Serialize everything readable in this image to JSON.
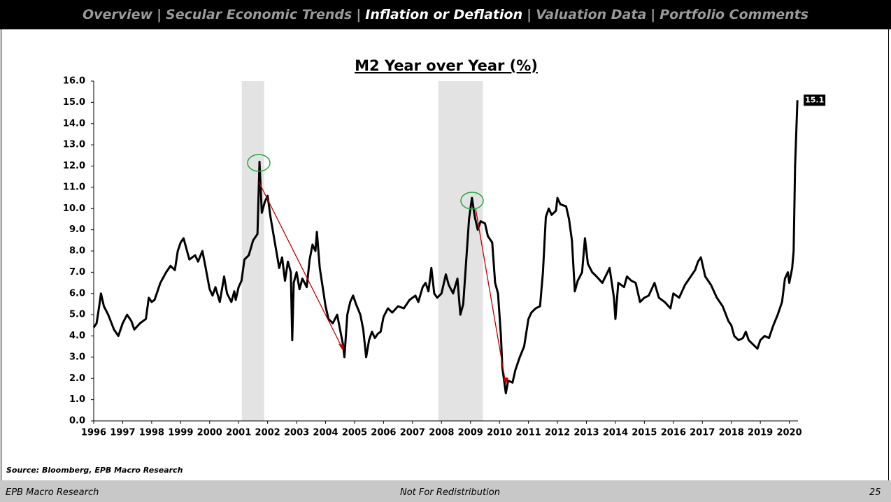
{
  "nav": {
    "items": [
      "Overview",
      "Secular Economic Trends",
      "Inflation or Deflation",
      "Valuation Data",
      "Portfolio Comments"
    ],
    "current": 2,
    "separator": "|"
  },
  "chart_data": {
    "type": "line",
    "title": "M2 Year over Year (%)",
    "xlim": [
      1996,
      2020.3
    ],
    "xticks": [
      1996,
      1997,
      1998,
      1999,
      2000,
      2001,
      2002,
      2003,
      2004,
      2005,
      2006,
      2007,
      2008,
      2009,
      2010,
      2011,
      2012,
      2013,
      2014,
      2015,
      2016,
      2017,
      2018,
      2019,
      2020
    ],
    "ylim": [
      0,
      16
    ],
    "yticks": [
      {
        "value": 0,
        "label": "0.0"
      },
      {
        "value": 1,
        "label": "1.0"
      },
      {
        "value": 2,
        "label": "2.0"
      },
      {
        "value": 3,
        "label": "3.0"
      },
      {
        "value": 4,
        "label": "4.0"
      },
      {
        "value": 5,
        "label": "5.0"
      },
      {
        "value": 6,
        "label": "6.0"
      },
      {
        "value": 7,
        "label": "7.0"
      },
      {
        "value": 8,
        "label": "8.0"
      },
      {
        "value": 9,
        "label": "9.0"
      },
      {
        "value": 10,
        "label": "10.0"
      },
      {
        "value": 11,
        "label": "11.0"
      },
      {
        "value": 12,
        "label": "12.0"
      },
      {
        "value": 13,
        "label": "13.0"
      },
      {
        "value": 14,
        "label": "14.0"
      },
      {
        "value": 15,
        "label": "15.0"
      },
      {
        "value": 16,
        "label": "16.0"
      }
    ],
    "recessions": [
      [
        2001.11,
        2001.88
      ],
      [
        2007.89,
        2009.43
      ]
    ],
    "recession_color": "#e3e3e3",
    "x": [
      1996.0,
      1996.1,
      1996.2,
      1996.25,
      1996.35,
      1996.5,
      1996.7,
      1996.85,
      1997.0,
      1997.15,
      1997.3,
      1997.4,
      1997.6,
      1997.8,
      1997.9,
      1998.0,
      1998.1,
      1998.3,
      1998.5,
      1998.65,
      1998.8,
      1998.9,
      1999.0,
      1999.1,
      1999.2,
      1999.3,
      1999.5,
      1999.6,
      1999.75,
      1999.85,
      2000.0,
      2000.1,
      2000.2,
      2000.35,
      2000.5,
      2000.6,
      2000.75,
      2000.85,
      2000.9,
      2001.0,
      2001.1,
      2001.2,
      2001.35,
      2001.5,
      2001.65,
      2001.72,
      2001.8,
      2001.9,
      2002.0,
      2002.1,
      2002.25,
      2002.4,
      2002.5,
      2002.6,
      2002.7,
      2002.8,
      2002.85,
      2002.9,
      2003.0,
      2003.1,
      2003.2,
      2003.35,
      2003.45,
      2003.55,
      2003.65,
      2003.7,
      2003.8,
      2003.9,
      2004.0,
      2004.1,
      2004.25,
      2004.4,
      2004.5,
      2004.6,
      2004.65,
      2004.75,
      2004.85,
      2004.95,
      2005.05,
      2005.2,
      2005.3,
      2005.4,
      2005.5,
      2005.6,
      2005.7,
      2005.8,
      2005.9,
      2006.0,
      2006.15,
      2006.3,
      2006.5,
      2006.7,
      2006.9,
      2007.1,
      2007.2,
      2007.35,
      2007.45,
      2007.55,
      2007.65,
      2007.75,
      2007.85,
      2008.0,
      2008.15,
      2008.25,
      2008.4,
      2008.55,
      2008.65,
      2008.75,
      2008.85,
      2008.95,
      2009.05,
      2009.15,
      2009.25,
      2009.35,
      2009.5,
      2009.6,
      2009.75,
      2009.85,
      2009.95,
      2010.05,
      2010.1,
      2010.15,
      2010.22,
      2010.3,
      2010.45,
      2010.55,
      2010.7,
      2010.85,
      2011.0,
      2011.1,
      2011.25,
      2011.4,
      2011.5,
      2011.6,
      2011.7,
      2011.8,
      2011.95,
      2012.0,
      2012.1,
      2012.3,
      2012.4,
      2012.5,
      2012.6,
      2012.7,
      2012.85,
      2012.95,
      2013.05,
      2013.2,
      2013.35,
      2013.55,
      2013.8,
      2013.95,
      2014.0,
      2014.1,
      2014.3,
      2014.4,
      2014.55,
      2014.7,
      2014.85,
      2015.0,
      2015.15,
      2015.35,
      2015.5,
      2015.7,
      2015.9,
      2016.0,
      2016.2,
      2016.4,
      2016.6,
      2016.75,
      2016.85,
      2016.95,
      2017.1,
      2017.3,
      2017.5,
      2017.7,
      2017.9,
      2018.0,
      2018.1,
      2018.25,
      2018.4,
      2018.5,
      2018.6,
      2018.75,
      2018.9,
      2019.0,
      2019.15,
      2019.3,
      2019.45,
      2019.6,
      2019.75,
      2019.85,
      2019.95,
      2020.0,
      2020.1,
      2020.15,
      2020.2,
      2020.28
    ],
    "series": [
      {
        "name": "M2 YoY",
        "color": "#000000",
        "values": [
          4.4,
          4.6,
          5.5,
          6.0,
          5.4,
          5.0,
          4.3,
          4.0,
          4.6,
          5.0,
          4.7,
          4.3,
          4.6,
          4.8,
          5.8,
          5.6,
          5.7,
          6.5,
          7.0,
          7.3,
          7.1,
          8.0,
          8.4,
          8.6,
          8.1,
          7.6,
          7.8,
          7.5,
          8.0,
          7.3,
          6.2,
          5.9,
          6.3,
          5.6,
          6.8,
          6.0,
          5.6,
          6.1,
          5.7,
          6.3,
          6.6,
          7.6,
          7.8,
          8.5,
          8.8,
          12.2,
          9.8,
          10.3,
          10.6,
          9.6,
          8.4,
          7.2,
          7.7,
          6.6,
          7.5,
          7.0,
          3.8,
          6.5,
          7.0,
          6.2,
          6.7,
          6.3,
          7.6,
          8.3,
          8.0,
          8.9,
          7.2,
          6.3,
          5.4,
          4.8,
          4.6,
          5.0,
          4.3,
          3.6,
          3.0,
          5.0,
          5.6,
          5.9,
          5.5,
          5.0,
          4.3,
          3.0,
          3.8,
          4.2,
          3.9,
          4.1,
          4.2,
          4.9,
          5.3,
          5.1,
          5.4,
          5.3,
          5.7,
          5.9,
          5.6,
          6.3,
          6.5,
          6.1,
          7.2,
          6.0,
          5.8,
          6.0,
          6.9,
          6.4,
          6.0,
          6.7,
          5.0,
          5.5,
          7.5,
          9.5,
          10.5,
          9.6,
          9.0,
          9.4,
          9.3,
          8.7,
          8.4,
          6.5,
          6.0,
          4.0,
          2.5,
          2.0,
          1.3,
          1.9,
          1.8,
          2.4,
          3.0,
          3.5,
          4.8,
          5.1,
          5.3,
          5.4,
          7.0,
          9.6,
          10.0,
          9.7,
          9.9,
          10.5,
          10.2,
          10.1,
          9.5,
          8.5,
          6.1,
          6.6,
          7.0,
          8.6,
          7.4,
          7.0,
          6.8,
          6.5,
          7.2,
          5.8,
          4.8,
          6.5,
          6.3,
          6.8,
          6.6,
          6.5,
          5.6,
          5.8,
          5.9,
          6.5,
          5.8,
          5.6,
          5.3,
          6.0,
          5.8,
          6.4,
          6.8,
          7.1,
          7.5,
          7.7,
          6.8,
          6.4,
          5.8,
          5.4,
          4.7,
          4.5,
          4.0,
          3.8,
          3.9,
          4.2,
          3.8,
          3.6,
          3.4,
          3.8,
          4.0,
          3.9,
          4.5,
          5.0,
          5.6,
          6.7,
          7.0,
          6.5,
          7.2,
          8.0,
          12.0,
          15.1
        ]
      }
    ]
  },
  "source": "Source: Bloomberg, EPB Macro Research",
  "footer": {
    "left": "EPB Macro Research",
    "center": "Not For Redistribution",
    "page": "25"
  }
}
